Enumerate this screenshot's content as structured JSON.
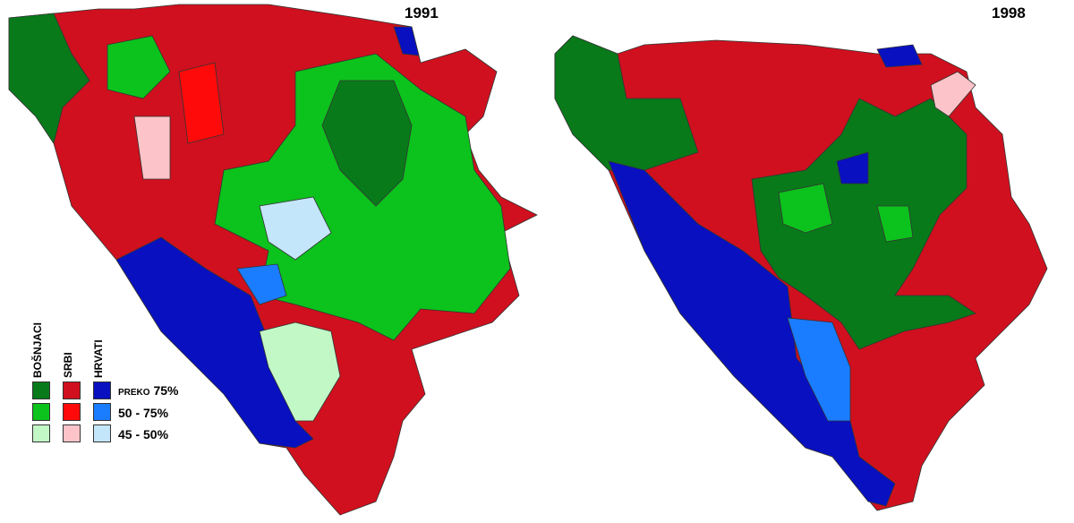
{
  "maps": [
    {
      "year": "1991"
    },
    {
      "year": "1998"
    }
  ],
  "legend": {
    "groups": [
      {
        "label": "BOŠNJACI",
        "colors": [
          "#087a1a",
          "#0cc21c",
          "#c2f7c6"
        ]
      },
      {
        "label": "SRBI",
        "colors": [
          "#d0101e",
          "#ff0a0a",
          "#fcc4c8"
        ]
      },
      {
        "label": "HRVATI",
        "colors": [
          "#0810c0",
          "#1a7cff",
          "#c4e6fb"
        ]
      }
    ],
    "rows": [
      {
        "prefix": "PREKO",
        "value": "75%"
      },
      {
        "prefix": "",
        "value": "50 - 75%"
      },
      {
        "prefix": "",
        "value": "45 - 50%"
      }
    ]
  }
}
